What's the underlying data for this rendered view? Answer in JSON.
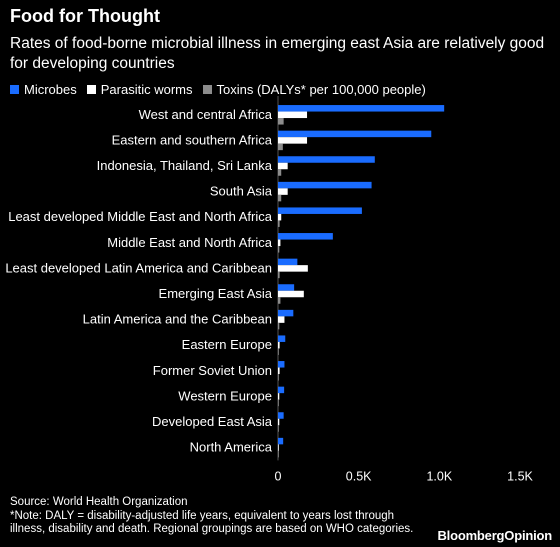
{
  "title": "Food for Thought",
  "subtitle": "Rates of food-borne microbial illness in emerging east Asia are relatively good for developing countries",
  "legend": {
    "microbes": "Microbes",
    "worms": "Parasitic worms",
    "toxins": "Toxins (DALYs* per 100,000 people)"
  },
  "colors": {
    "microbes": "#1a6cff",
    "worms": "#ffffff",
    "toxins": "#8c8c8c",
    "background": "#000000"
  },
  "footer": {
    "source": "Source: World Health Organization",
    "note": "*Note: DALY = disability-adjusted life years, equivalent to years lost through illness, disability and death. Regional groupings are based on WHO categories."
  },
  "brand": {
    "part1": "Bloomberg",
    "part2": "Opinion"
  },
  "chart_data": {
    "type": "bar",
    "orientation": "horizontal",
    "categories": [
      "West and central Africa",
      "Eastern and southern Africa",
      "Indonesia, Thailand, Sri Lanka",
      "South Asia",
      "Least developed Middle East and North Africa",
      "Middle East and North Africa",
      "Least developed Latin America and Caribbean",
      "Emerging East Asia",
      "Latin America and the Caribbean",
      "Eastern Europe",
      "Former Soviet Union",
      "Western Europe",
      "Developed East Asia",
      "North America"
    ],
    "series": [
      {
        "name": "Microbes",
        "values": [
          1030,
          950,
          600,
          580,
          520,
          340,
          120,
          100,
          95,
          45,
          40,
          38,
          35,
          32
        ]
      },
      {
        "name": "Parasitic worms",
        "values": [
          180,
          180,
          60,
          60,
          20,
          15,
          185,
          160,
          40,
          10,
          10,
          8,
          8,
          5
        ]
      },
      {
        "name": "Toxins (DALYs* per 100,000 people)",
        "values": [
          35,
          30,
          20,
          20,
          10,
          8,
          10,
          15,
          8,
          5,
          5,
          5,
          5,
          5
        ]
      }
    ],
    "xticks": [
      "0",
      "0.5K",
      "1.0K",
      "1.5K"
    ],
    "xtick_values": [
      0,
      500,
      1000,
      1500
    ],
    "xlim": [
      0,
      1500
    ]
  }
}
